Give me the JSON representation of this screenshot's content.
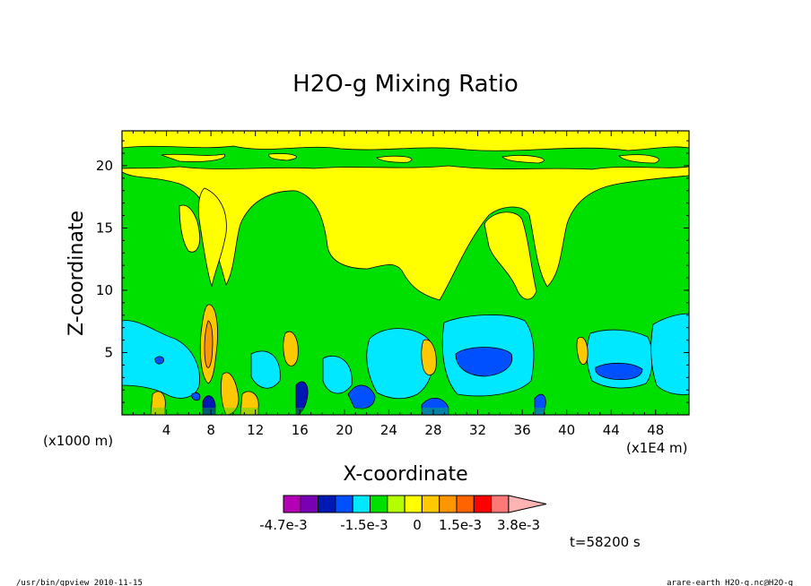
{
  "chart_data": {
    "type": "heatmap",
    "title": "H2O-g Mixing Ratio",
    "xlabel": "X-coordinate",
    "ylabel": "Z-coordinate",
    "x_unit_left": "(x1000 m)",
    "x_unit_right": "(x1E4 m)",
    "xlim": [
      0,
      51
    ],
    "ylim": [
      0,
      22.8
    ],
    "x_ticks": [
      4,
      8,
      12,
      16,
      20,
      24,
      28,
      32,
      36,
      40,
      44,
      48
    ],
    "y_ticks": [
      5,
      10,
      15,
      20
    ],
    "colorbar": {
      "labels": [
        "-4.7e-3",
        "-1.5e-3",
        "0",
        "1.5e-3",
        "3.8e-3"
      ],
      "colors": [
        "#b400b4",
        "#7a00b4",
        "#0018b4",
        "#0050ff",
        "#00e8ff",
        "#00e000",
        "#b4ff00",
        "#ffff00",
        "#ffc800",
        "#ff9600",
        "#ff6400",
        "#ff0000",
        "#ff7878",
        "#ffb4b4"
      ]
    },
    "regions": [
      {
        "name": "upper-yellow",
        "color": "#ffff00"
      },
      {
        "name": "mid-green",
        "color": "#00e000"
      },
      {
        "name": "cyan-patches",
        "color": "#00e8ff"
      },
      {
        "name": "blue-cores",
        "color": "#0050ff"
      },
      {
        "name": "orange-plumes",
        "color": "#ffc800"
      }
    ]
  },
  "time_label": "t=58200 s",
  "footer": {
    "left": "/usr/bin/gpview 2010-11-15",
    "right": "arare-earth_H2O-g.nc@H2O-g"
  }
}
